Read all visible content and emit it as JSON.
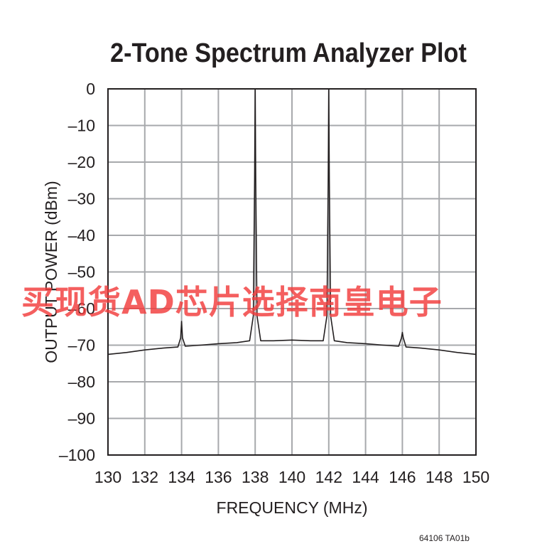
{
  "chart_data": {
    "type": "line",
    "title": "2-Tone Spectrum Analyzer Plot",
    "xlabel": "FREQUENCY (MHz)",
    "ylabel": "OUTPUT POWER (dBm)",
    "xlim": [
      130,
      150
    ],
    "ylim": [
      -100,
      0
    ],
    "x_ticks": [
      130,
      132,
      134,
      136,
      138,
      140,
      142,
      144,
      146,
      148,
      150
    ],
    "y_ticks": [
      0,
      -10,
      -20,
      -30,
      -40,
      -50,
      -60,
      -70,
      -80,
      -90,
      -100
    ],
    "y_tick_labels": [
      "0",
      "–10",
      "–20",
      "–30",
      "–40",
      "–50",
      "–60",
      "–70",
      "–80",
      "–90",
      "–100"
    ],
    "grid": true,
    "series": [
      {
        "x": [
          130,
          131,
          132,
          133,
          133.8,
          133.95,
          134.0,
          134.05,
          134.2,
          135,
          136,
          137,
          137.7,
          137.9,
          137.97,
          138.0,
          138.03,
          138.1,
          138.3,
          139,
          140,
          141,
          141.7,
          141.9,
          141.97,
          142.0,
          142.03,
          142.1,
          142.3,
          143,
          144,
          145,
          145.8,
          145.95,
          146.0,
          146.05,
          146.2,
          147,
          148,
          149,
          150
        ],
        "y": [
          -72.5,
          -72.0,
          -71.3,
          -70.8,
          -70.5,
          -68,
          -63.5,
          -68,
          -70.3,
          -70.0,
          -69.6,
          -69.3,
          -68.8,
          -62,
          -25,
          0,
          -25,
          -62,
          -68.8,
          -68.8,
          -68.6,
          -68.8,
          -68.8,
          -62,
          -25,
          0,
          -25,
          -62,
          -68.8,
          -69.3,
          -69.6,
          -70.0,
          -70.3,
          -68,
          -66.5,
          -68,
          -70.5,
          -70.8,
          -71.3,
          -72.0,
          -72.5
        ]
      }
    ]
  },
  "footer_code": "64106 TA01b",
  "watermark": "买现货AD芯片选择南皇电子",
  "colors": {
    "grid": "#a7a9ac",
    "trace": "#231f20",
    "text": "#231f20",
    "watermark": "#f23c3c"
  }
}
